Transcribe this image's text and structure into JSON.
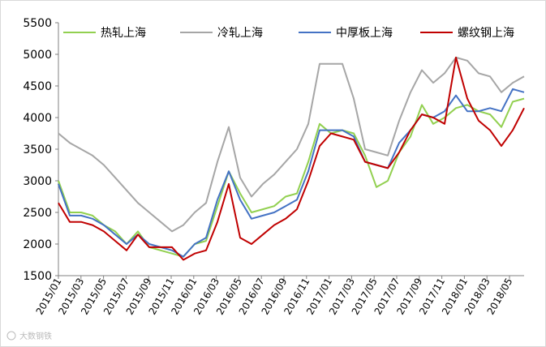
{
  "chart_data": {
    "type": "line",
    "title": "",
    "xlabel": "",
    "ylabel": "",
    "ylim": [
      1500,
      5500
    ],
    "yticks": [
      1500,
      2000,
      2500,
      3000,
      3500,
      4000,
      4500,
      5000,
      5500
    ],
    "xticks": [
      "2015/01",
      "2015/03",
      "2015/05",
      "2015/07",
      "2015/09",
      "2015/11",
      "2016/01",
      "2016/03",
      "2016/05",
      "2016/07",
      "2016/09",
      "2016/11",
      "2017/01",
      "2017/03",
      "2017/05",
      "2017/07",
      "2017/09",
      "2017/11",
      "2018/01",
      "2018/03",
      "2018/05"
    ],
    "grid": false,
    "legend_position": "top",
    "x": [
      "2015/01",
      "2015/02",
      "2015/03",
      "2015/04",
      "2015/05",
      "2015/06",
      "2015/07",
      "2015/08",
      "2015/09",
      "2015/10",
      "2015/11",
      "2015/12",
      "2016/01",
      "2016/02",
      "2016/03",
      "2016/04",
      "2016/05",
      "2016/06",
      "2016/07",
      "2016/08",
      "2016/09",
      "2016/10",
      "2016/11",
      "2016/12",
      "2017/01",
      "2017/02",
      "2017/03",
      "2017/04",
      "2017/05",
      "2017/06",
      "2017/07",
      "2017/08",
      "2017/09",
      "2017/10",
      "2017/11",
      "2017/12",
      "2018/01",
      "2018/02",
      "2018/03",
      "2018/04",
      "2018/05",
      "2018/06"
    ],
    "series": [
      {
        "name": "热轧上海",
        "color": "#92d050",
        "values": [
          3000,
          2500,
          2500,
          2450,
          2300,
          2200,
          2000,
          2200,
          1950,
          1900,
          1850,
          1800,
          2000,
          2050,
          2600,
          3150,
          2800,
          2500,
          2550,
          2600,
          2750,
          2800,
          3300,
          3900,
          3750,
          3800,
          3750,
          3400,
          2900,
          3000,
          3450,
          3700,
          4200,
          3900,
          4000,
          4150,
          4200,
          4100,
          4050,
          3850,
          4250,
          4300
        ]
      },
      {
        "name": "冷轧上海",
        "color": "#a6a6a6",
        "values": [
          3750,
          3600,
          3500,
          3400,
          3250,
          3050,
          2850,
          2650,
          2500,
          2350,
          2200,
          2300,
          2500,
          2650,
          3300,
          3850,
          3050,
          2750,
          2950,
          3100,
          3300,
          3500,
          3900,
          4850,
          4850,
          4850,
          4300,
          3500,
          3450,
          3400,
          3950,
          4400,
          4750,
          4550,
          4700,
          4950,
          4900,
          4700,
          4650,
          4400,
          4550,
          4650
        ]
      },
      {
        "name": "中厚板上海",
        "color": "#4472c4",
        "values": [
          2950,
          2450,
          2450,
          2400,
          2300,
          2150,
          2000,
          2150,
          2000,
          1950,
          1900,
          1800,
          2000,
          2100,
          2700,
          3150,
          2700,
          2400,
          2450,
          2500,
          2600,
          2700,
          3150,
          3800,
          3800,
          3800,
          3700,
          3300,
          3250,
          3200,
          3600,
          3800,
          4050,
          4000,
          4100,
          4350,
          4100,
          4100,
          4150,
          4100,
          4450,
          4400
        ]
      },
      {
        "name": "螺纹钢上海",
        "color": "#c00000",
        "values": [
          2650,
          2350,
          2350,
          2300,
          2200,
          2050,
          1900,
          2150,
          1950,
          1950,
          1950,
          1750,
          1850,
          1900,
          2350,
          2950,
          2100,
          2000,
          2150,
          2300,
          2400,
          2550,
          3000,
          3550,
          3750,
          3700,
          3650,
          3300,
          3250,
          3200,
          3450,
          3800,
          4050,
          4000,
          3900,
          4950,
          4300,
          3950,
          3800,
          3550,
          3800,
          4150
        ]
      }
    ]
  },
  "watermark": "大数钢铁"
}
